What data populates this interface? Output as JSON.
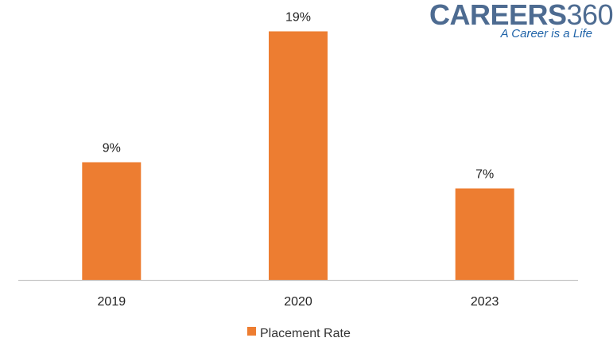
{
  "logo": {
    "brand_bold": "CAREERS",
    "brand_number": "360",
    "tagline": "A Career is a Life",
    "colors": {
      "brand": "#4d6b91",
      "tagline": "#1f63a8"
    }
  },
  "chart_data": {
    "type": "bar",
    "categories": [
      "2019",
      "2020",
      "2023"
    ],
    "series": [
      {
        "name": "Placement Rate",
        "values": [
          9,
          19,
          7
        ],
        "labels": [
          "9%",
          "19%",
          "7%"
        ],
        "color": "#ed7d31"
      }
    ],
    "title": "",
    "xlabel": "",
    "ylabel": "",
    "ylim": [
      0,
      20
    ],
    "grid": false,
    "legend_position": "bottom"
  }
}
